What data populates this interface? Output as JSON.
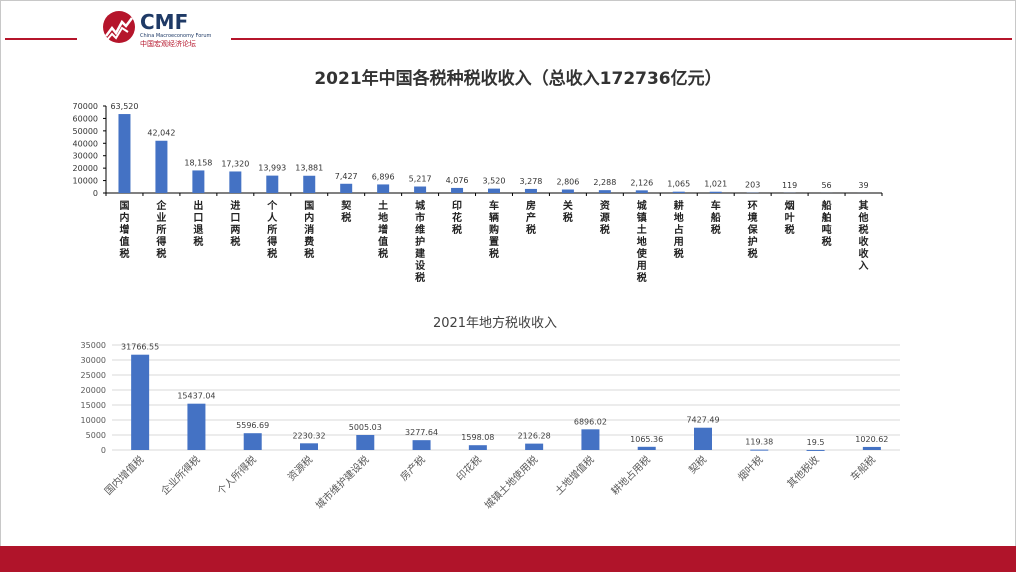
{
  "header": {
    "logo_text": "CMF",
    "logo_subtitle": "China Macroeconomy Forum",
    "logo_cn": "中国宏观经济论坛",
    "accent_color": "#b5152b"
  },
  "chart_data": [
    {
      "type": "bar",
      "title": "2021年中国各税种税收收入（总收入172736亿元）",
      "xlabel": "",
      "ylabel": "",
      "ylim": [
        0,
        70000
      ],
      "yticks": [
        "0",
        "10000",
        "20000",
        "30000",
        "40000",
        "50000",
        "60000",
        "70000"
      ],
      "grid": false,
      "bar_color": "#4472c4",
      "categories": [
        "国内增值税",
        "企业所得税",
        "出口退税",
        "进口两税",
        "个人所得税",
        "国内消费税",
        "契税",
        "土地增值税",
        "城市维护建设税",
        "印花税",
        "车辆购置税",
        "房产税",
        "关税",
        "资源税",
        "城镇土地使用税",
        "耕地占用税",
        "车船税",
        "环境保护税",
        "烟叶税",
        "船舶吨税",
        "其他税收收入"
      ],
      "values": [
        63520,
        42042,
        18158,
        17320,
        13993,
        13881,
        7427,
        6896,
        5217,
        4076,
        3520,
        3278,
        2806,
        2288,
        2126,
        1065,
        1021,
        203,
        119,
        56,
        39
      ],
      "data_labels": [
        "63,520",
        "42,042",
        "18,158",
        "17,320",
        "13,993",
        "13,881",
        "7,427",
        "6,896",
        "5,217",
        "4,076",
        "3,520",
        "3,278",
        "2,806",
        "2,288",
        "2,126",
        "1,065",
        "1,021",
        "203",
        "119",
        "56",
        "39"
      ]
    },
    {
      "type": "bar",
      "title": "2021年地方税收收入",
      "xlabel": "",
      "ylabel": "",
      "ylim": [
        0,
        35000
      ],
      "yticks": [
        "0",
        "5000",
        "10000",
        "15000",
        "20000",
        "25000",
        "30000",
        "35000"
      ],
      "grid": true,
      "bar_color": "#4472c4",
      "categories": [
        "国内增值税",
        "企业所得税",
        "个人所得税",
        "资源税",
        "城市维护建设税",
        "房产税",
        "印花税",
        "城镇土地使用税",
        "土地增值税",
        "耕地占用税",
        "契税",
        "烟叶税",
        "其他税收",
        "车船税"
      ],
      "values": [
        31766.55,
        15437.04,
        5596.69,
        2230.32,
        5005.03,
        3277.64,
        1598.08,
        2126.28,
        6896.02,
        1065.36,
        7427.49,
        119.38,
        19.5,
        1020.62
      ],
      "data_labels": [
        "31766.55",
        "15437.04",
        "5596.69",
        "2230.32",
        "5005.03",
        "3277.64",
        "1598.08",
        "2126.28",
        "6896.02",
        "1065.36",
        "7427.49",
        "119.38",
        "19.5",
        "1020.62"
      ]
    }
  ]
}
